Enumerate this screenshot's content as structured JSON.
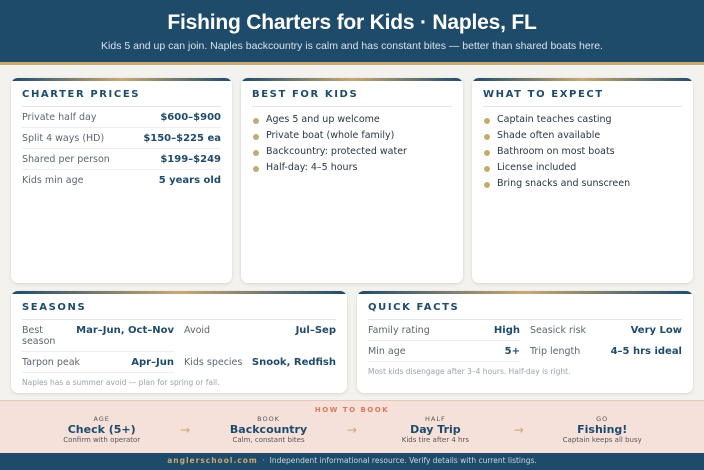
{
  "header": {
    "title": "Fishing Charters for Kids · Naples, FL",
    "subtitle": "Kids 5 and up can join. Naples backcountry is calm and has constant bites — better than shared boats here."
  },
  "prices": {
    "title": "CHARTER PRICES",
    "rows": [
      {
        "k": "Private half day",
        "v": "$600–$900"
      },
      {
        "k": "Split 4 ways (HD)",
        "v": "$150–$225 ea"
      },
      {
        "k": "Shared per person",
        "v": "$199–$249"
      },
      {
        "k": "Kids min age",
        "v": "5 years old"
      }
    ]
  },
  "best": {
    "title": "BEST FOR KIDS",
    "items": [
      "Ages 5 and up welcome",
      "Private boat (whole family)",
      "Backcountry: protected water",
      "Half-day: 4–5 hours"
    ]
  },
  "expect": {
    "title": "WHAT TO EXPECT",
    "items": [
      "Captain teaches casting",
      "Shade often available",
      "Bathroom on most boats",
      "License included",
      "Bring snacks and sunscreen"
    ]
  },
  "seasons": {
    "title": "SEASONS",
    "rows": [
      {
        "k": "Best season",
        "v": "Mar–Jun, Oct–Nov"
      },
      {
        "k": "Avoid",
        "v": "Jul–Sep"
      },
      {
        "k": "Tarpon peak",
        "v": "Apr–Jun"
      },
      {
        "k": "Kids species",
        "v": "Snook, Redfish"
      }
    ],
    "note": "Naples has a summer avoid — plan for spring or fall."
  },
  "facts": {
    "title": "QUICK FACTS",
    "rows": [
      {
        "k": "Family rating",
        "v": "High"
      },
      {
        "k": "Seasick risk",
        "v": "Very Low"
      },
      {
        "k": "Min age",
        "v": "5+"
      },
      {
        "k": "Trip length",
        "v": "4–5 hrs ideal"
      }
    ],
    "note": "Most kids disengage after 3–4 hours. Half-day is right."
  },
  "howto": {
    "label": "HOW TO BOOK",
    "arrow": "→",
    "steps": [
      {
        "s": "AGE",
        "t": "Check (5+)",
        "d": "Confirm with operator"
      },
      {
        "s": "BOOK",
        "t": "Backcountry",
        "d": "Calm, constant bites"
      },
      {
        "s": "HALF",
        "t": "Day Trip",
        "d": "Kids tire after 4 hrs"
      },
      {
        "s": "GO",
        "t": "Fishing!",
        "d": "Captain keeps all busy"
      }
    ]
  },
  "footer": {
    "brand": "anglerschool.com",
    "sep": "·",
    "text": "Independent informational resource. Verify details with current listings."
  },
  "colors": {
    "navy": "#1f4b6b",
    "gold": "#c9a872",
    "band": "#f5e1da"
  }
}
